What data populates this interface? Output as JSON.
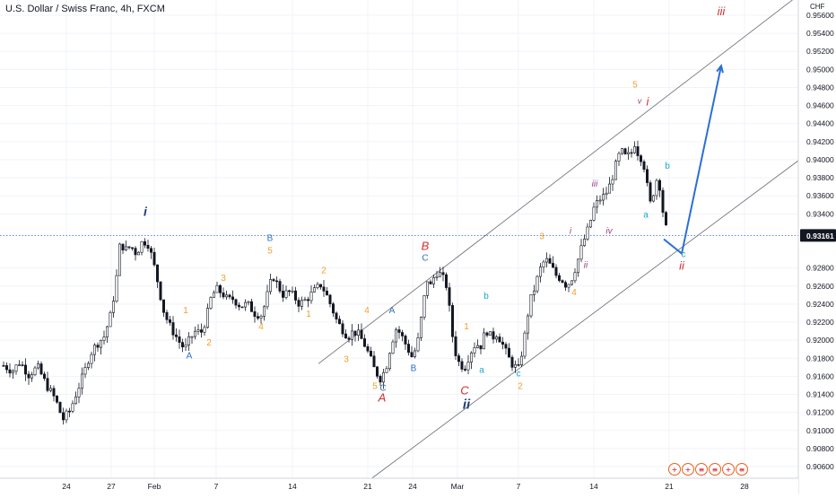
{
  "title": "U.S. Dollar / Swiss Franc, 4h, FXCM",
  "currency": "CHF",
  "colors": {
    "up": "#131722",
    "down": "#131722",
    "grid": "#f0f3fa",
    "price_line": "#2962ff",
    "last_price_bg": "#131722",
    "orange": "#f0a02a",
    "blue": "#2f6fc4",
    "red": "#d32f2f",
    "navy": "#1c3e7a",
    "cyan": "#1aa7c9",
    "purple": "#9c3e86",
    "arrow": "#2b6fd6",
    "channel": "#6b6b6b"
  },
  "events": [
    {
      "name": "economic-event-1",
      "glyph": "+"
    },
    {
      "name": "economic-event-2",
      "glyph": "+"
    },
    {
      "name": "economic-event-3",
      "glyph": "≡"
    },
    {
      "name": "economic-event-4",
      "glyph": "≡"
    },
    {
      "name": "economic-event-5",
      "glyph": "+"
    },
    {
      "name": "economic-event-6",
      "glyph": "≡"
    }
  ],
  "chart_data": {
    "type": "candlestick",
    "title": "U.S. Dollar / Swiss Franc, 4h, FXCM",
    "y_axis": {
      "ylim": [
        0.905,
        0.9577
      ],
      "ticks": [
        "0.95600",
        "0.95400",
        "0.95200",
        "0.95000",
        "0.94800",
        "0.94600",
        "0.94400",
        "0.94200",
        "0.94000",
        "0.93800",
        "0.93600",
        "0.93400",
        "0.92800",
        "0.92600",
        "0.92400",
        "0.92200",
        "0.92000",
        "0.91800",
        "0.91600",
        "0.91400",
        "0.91200",
        "0.91000",
        "0.90800",
        "0.90600"
      ],
      "last_price": "0.93161"
    },
    "x_axis": {
      "ticks": [
        {
          "label": "24",
          "x": 74
        },
        {
          "label": "27",
          "x": 124
        },
        {
          "label": "Feb",
          "x": 172
        },
        {
          "label": "7",
          "x": 241
        },
        {
          "label": "14",
          "x": 326
        },
        {
          "label": "21",
          "x": 410
        },
        {
          "label": "24",
          "x": 460
        },
        {
          "label": "Mar",
          "x": 510
        },
        {
          "label": "7",
          "x": 578
        },
        {
          "label": "14",
          "x": 662
        },
        {
          "label": "21",
          "x": 746
        },
        {
          "label": "28",
          "x": 830
        }
      ]
    },
    "price_path": [
      [
        4,
        0.9172
      ],
      [
        14,
        0.9166
      ],
      [
        22,
        0.9176
      ],
      [
        32,
        0.9162
      ],
      [
        42,
        0.917
      ],
      [
        52,
        0.915
      ],
      [
        62,
        0.9134
      ],
      [
        70,
        0.9112
      ],
      [
        78,
        0.9122
      ],
      [
        86,
        0.9144
      ],
      [
        94,
        0.9164
      ],
      [
        100,
        0.9184
      ],
      [
        108,
        0.9196
      ],
      [
        116,
        0.9204
      ],
      [
        124,
        0.923
      ],
      [
        130,
        0.927
      ],
      [
        134,
        0.9308
      ],
      [
        140,
        0.93
      ],
      [
        146,
        0.9304
      ],
      [
        152,
        0.9296
      ],
      [
        158,
        0.9308
      ],
      [
        164,
        0.931
      ],
      [
        170,
        0.929
      ],
      [
        176,
        0.9264
      ],
      [
        182,
        0.9234
      ],
      [
        188,
        0.9218
      ],
      [
        194,
        0.9208
      ],
      [
        200,
        0.9198
      ],
      [
        206,
        0.919
      ],
      [
        212,
        0.9202
      ],
      [
        218,
        0.921
      ],
      [
        224,
        0.9208
      ],
      [
        230,
        0.9224
      ],
      [
        236,
        0.925
      ],
      [
        242,
        0.9256
      ],
      [
        248,
        0.9252
      ],
      [
        254,
        0.9244
      ],
      [
        260,
        0.9246
      ],
      [
        268,
        0.9238
      ],
      [
        276,
        0.924
      ],
      [
        284,
        0.923
      ],
      [
        292,
        0.9228
      ],
      [
        298,
        0.925
      ],
      [
        304,
        0.9272
      ],
      [
        310,
        0.926
      ],
      [
        316,
        0.925
      ],
      [
        322,
        0.9254
      ],
      [
        328,
        0.9248
      ],
      [
        334,
        0.924
      ],
      [
        340,
        0.9244
      ],
      [
        346,
        0.925
      ],
      [
        352,
        0.9256
      ],
      [
        358,
        0.9262
      ],
      [
        364,
        0.925
      ],
      [
        370,
        0.9236
      ],
      [
        376,
        0.922
      ],
      [
        382,
        0.9212
      ],
      [
        388,
        0.9204
      ],
      [
        394,
        0.921
      ],
      [
        400,
        0.9206
      ],
      [
        406,
        0.9196
      ],
      [
        412,
        0.9182
      ],
      [
        418,
        0.9166
      ],
      [
        424,
        0.9158
      ],
      [
        430,
        0.9168
      ],
      [
        436,
        0.9196
      ],
      [
        442,
        0.9214
      ],
      [
        448,
        0.9204
      ],
      [
        454,
        0.9192
      ],
      [
        460,
        0.918
      ],
      [
        466,
        0.92
      ],
      [
        472,
        0.924
      ],
      [
        476,
        0.9268
      ],
      [
        480,
        0.926
      ],
      [
        486,
        0.9276
      ],
      [
        492,
        0.9272
      ],
      [
        498,
        0.926
      ],
      [
        502,
        0.9226
      ],
      [
        506,
        0.9192
      ],
      [
        512,
        0.9174
      ],
      [
        518,
        0.917
      ],
      [
        524,
        0.9186
      ],
      [
        530,
        0.9196
      ],
      [
        536,
        0.9194
      ],
      [
        542,
        0.9212
      ],
      [
        548,
        0.9202
      ],
      [
        554,
        0.9208
      ],
      [
        560,
        0.9196
      ],
      [
        566,
        0.9182
      ],
      [
        572,
        0.9172
      ],
      [
        578,
        0.9168
      ],
      [
        584,
        0.9198
      ],
      [
        590,
        0.924
      ],
      [
        596,
        0.9258
      ],
      [
        602,
        0.9278
      ],
      [
        608,
        0.929
      ],
      [
        614,
        0.9282
      ],
      [
        620,
        0.9272
      ],
      [
        626,
        0.9268
      ],
      [
        632,
        0.926
      ],
      [
        638,
        0.927
      ],
      [
        644,
        0.9288
      ],
      [
        650,
        0.9308
      ],
      [
        656,
        0.9324
      ],
      [
        662,
        0.9346
      ],
      [
        668,
        0.9356
      ],
      [
        674,
        0.936
      ],
      [
        680,
        0.9372
      ],
      [
        686,
        0.9392
      ],
      [
        692,
        0.941
      ],
      [
        698,
        0.9402
      ],
      [
        704,
        0.9408
      ],
      [
        708,
        0.942
      ],
      [
        712,
        0.9404
      ],
      [
        716,
        0.9402
      ],
      [
        720,
        0.9384
      ],
      [
        724,
        0.9348
      ],
      [
        728,
        0.9362
      ],
      [
        732,
        0.9378
      ],
      [
        736,
        0.937
      ],
      [
        740,
        0.9334
      ],
      [
        744,
        0.9318
      ]
    ],
    "channel_lines": [
      {
        "name": "upper-channel-line",
        "x1": 355,
        "y1": 0.9174,
        "x2": 890,
        "y2": 0.9582
      },
      {
        "name": "lower-channel-line",
        "x1": 405,
        "y1": 0.904,
        "x2": 890,
        "y2": 0.9399
      }
    ],
    "price_line": {
      "name": "last-price-line",
      "value": 0.93161
    },
    "projection": [
      {
        "x": 740,
        "y": 0.9312
      },
      {
        "x": 760,
        "y": 0.9296
      },
      {
        "x": 804,
        "y": 0.9504
      }
    ],
    "annotations": [
      {
        "text": "i",
        "x": 162,
        "y": 0.9338,
        "color": "navy",
        "size": 14,
        "italic": true,
        "bold": true
      },
      {
        "text": "1",
        "x": 207,
        "y": 0.923,
        "color": "orange",
        "size": 10
      },
      {
        "text": "A",
        "x": 211,
        "y": 0.918,
        "color": "blue",
        "size": 10
      },
      {
        "text": "2",
        "x": 233,
        "y": 0.9194,
        "color": "orange",
        "size": 10
      },
      {
        "text": "3",
        "x": 249,
        "y": 0.9266,
        "color": "orange",
        "size": 10
      },
      {
        "text": "B",
        "x": 301,
        "y": 0.931,
        "color": "blue",
        "size": 10
      },
      {
        "text": "5",
        "x": 301,
        "y": 0.9296,
        "color": "orange",
        "size": 10
      },
      {
        "text": "4",
        "x": 291,
        "y": 0.9212,
        "color": "orange",
        "size": 10
      },
      {
        "text": "2",
        "x": 361,
        "y": 0.9274,
        "color": "orange",
        "size": 10
      },
      {
        "text": "1",
        "x": 344,
        "y": 0.9226,
        "color": "orange",
        "size": 10
      },
      {
        "text": "4",
        "x": 409,
        "y": 0.923,
        "color": "orange",
        "size": 10
      },
      {
        "text": "A",
        "x": 437,
        "y": 0.923,
        "color": "blue",
        "size": 10
      },
      {
        "text": "3",
        "x": 386,
        "y": 0.9176,
        "color": "orange",
        "size": 10
      },
      {
        "text": "5",
        "x": 418,
        "y": 0.9146,
        "color": "orange",
        "size": 10
      },
      {
        "text": "C",
        "x": 427,
        "y": 0.9144,
        "color": "blue",
        "size": 10
      },
      {
        "text": "A",
        "x": 426,
        "y": 0.9132,
        "color": "red",
        "size": 13,
        "italic": true
      },
      {
        "text": "B",
        "x": 461,
        "y": 0.9166,
        "color": "blue",
        "size": 10
      },
      {
        "text": "B",
        "x": 474,
        "y": 0.93,
        "color": "red",
        "size": 13,
        "italic": true
      },
      {
        "text": "C",
        "x": 474,
        "y": 0.9288,
        "color": "blue",
        "size": 10
      },
      {
        "text": "1",
        "x": 520,
        "y": 0.9212,
        "color": "orange",
        "size": 10
      },
      {
        "text": "b",
        "x": 542,
        "y": 0.9246,
        "color": "cyan",
        "size": 10
      },
      {
        "text": "a",
        "x": 537,
        "y": 0.9164,
        "color": "cyan",
        "size": 10
      },
      {
        "text": "C",
        "x": 518,
        "y": 0.914,
        "color": "red",
        "size": 13,
        "italic": true
      },
      {
        "text": "ii",
        "x": 520,
        "y": 0.9124,
        "color": "navy",
        "size": 15,
        "italic": true,
        "bold": true
      },
      {
        "text": "c",
        "x": 578,
        "y": 0.916,
        "color": "cyan",
        "size": 10
      },
      {
        "text": "2",
        "x": 580,
        "y": 0.9146,
        "color": "orange",
        "size": 10
      },
      {
        "text": "3",
        "x": 604,
        "y": 0.9312,
        "color": "orange",
        "size": 10
      },
      {
        "text": "4",
        "x": 640,
        "y": 0.925,
        "color": "orange",
        "size": 10
      },
      {
        "text": "i",
        "x": 636,
        "y": 0.9318,
        "color": "purple",
        "size": 10,
        "italic": true
      },
      {
        "text": "ii",
        "x": 653,
        "y": 0.928,
        "color": "purple",
        "size": 10,
        "italic": true
      },
      {
        "text": "iii",
        "x": 663,
        "y": 0.937,
        "color": "purple",
        "size": 10,
        "italic": true
      },
      {
        "text": "iv",
        "x": 679,
        "y": 0.9318,
        "color": "purple",
        "size": 10,
        "italic": true
      },
      {
        "text": "5",
        "x": 708,
        "y": 0.948,
        "color": "orange",
        "size": 10
      },
      {
        "text": "v",
        "x": 713,
        "y": 0.9462,
        "color": "purple",
        "size": 9,
        "italic": true
      },
      {
        "text": "i",
        "x": 722,
        "y": 0.946,
        "color": "red",
        "size": 13,
        "italic": true
      },
      {
        "text": "a",
        "x": 720,
        "y": 0.9336,
        "color": "cyan",
        "size": 10
      },
      {
        "text": "b",
        "x": 744,
        "y": 0.939,
        "color": "cyan",
        "size": 10
      },
      {
        "text": "c",
        "x": 762,
        "y": 0.9292,
        "color": "cyan",
        "size": 10
      },
      {
        "text": "ii",
        "x": 760,
        "y": 0.9278,
        "color": "red",
        "size": 13,
        "italic": true
      },
      {
        "text": "iii",
        "x": 804,
        "y": 0.956,
        "color": "red",
        "size": 13,
        "italic": true
      }
    ],
    "xlabel": "",
    "ylabel": ""
  }
}
